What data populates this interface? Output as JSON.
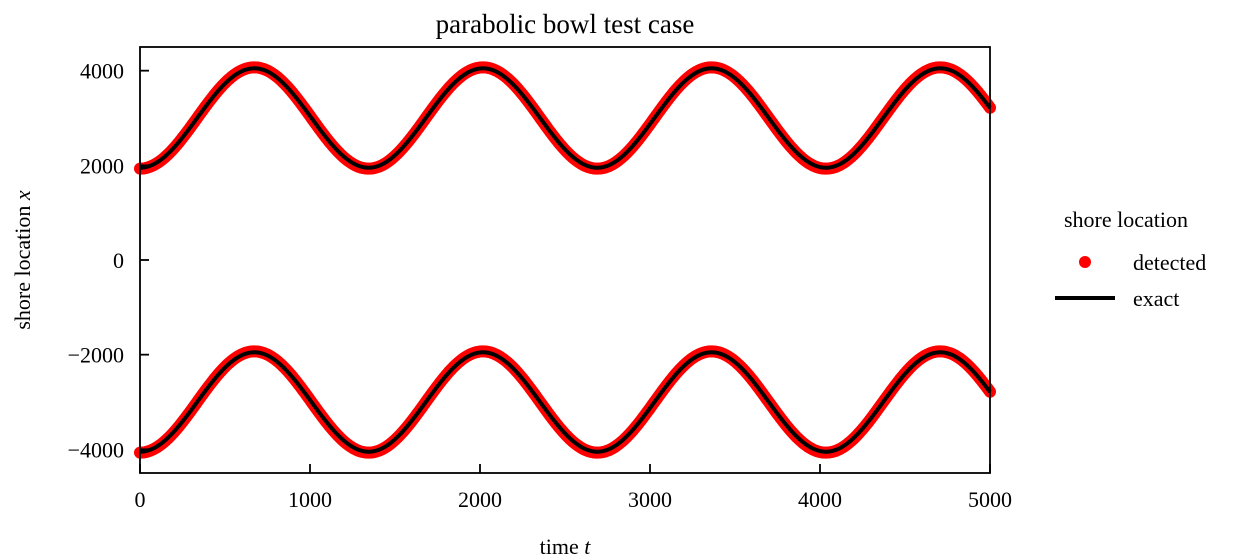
{
  "chart_data": {
    "type": "line",
    "title": "parabolic bowl test case",
    "xlabel": "time t",
    "xlabel_main": "time ",
    "xlabel_var": "t",
    "ylabel": "shore location x",
    "ylabel_main": "shore location ",
    "ylabel_var": "x",
    "xlim": [
      0,
      5000
    ],
    "ylim": [
      -4500,
      4500
    ],
    "x_ticks": [
      0,
      1000,
      2000,
      3000,
      4000,
      5000
    ],
    "x_tick_labels": [
      "0",
      "1000",
      "2000",
      "3000",
      "4000",
      "5000"
    ],
    "y_ticks": [
      -4000,
      -2000,
      0,
      2000,
      4000
    ],
    "y_tick_labels": [
      "−4000",
      "−2000",
      "0",
      "2000",
      "4000"
    ],
    "grid": false,
    "legend": {
      "title": "shore location",
      "placement": "right outside",
      "entries": [
        {
          "label": "detected",
          "marker": "dot",
          "color": "#ff0000"
        },
        {
          "label": "exact",
          "marker": "line",
          "color": "#000000"
        }
      ]
    },
    "period": 1345,
    "series": [
      {
        "name": "detected",
        "color": "#ff0000",
        "style": "markers",
        "branches": [
          {
            "center": 3000,
            "amplitude": 1070
          },
          {
            "center": -3000,
            "amplitude": 1070
          }
        ]
      },
      {
        "name": "exact",
        "color": "#000000",
        "style": "line",
        "branches": [
          {
            "center": 3000,
            "amplitude": 1050
          },
          {
            "center": -3000,
            "amplitude": 1050
          }
        ]
      }
    ]
  },
  "colors": {
    "detected": "#ff0000",
    "exact": "#000000",
    "axes": "#000000"
  }
}
